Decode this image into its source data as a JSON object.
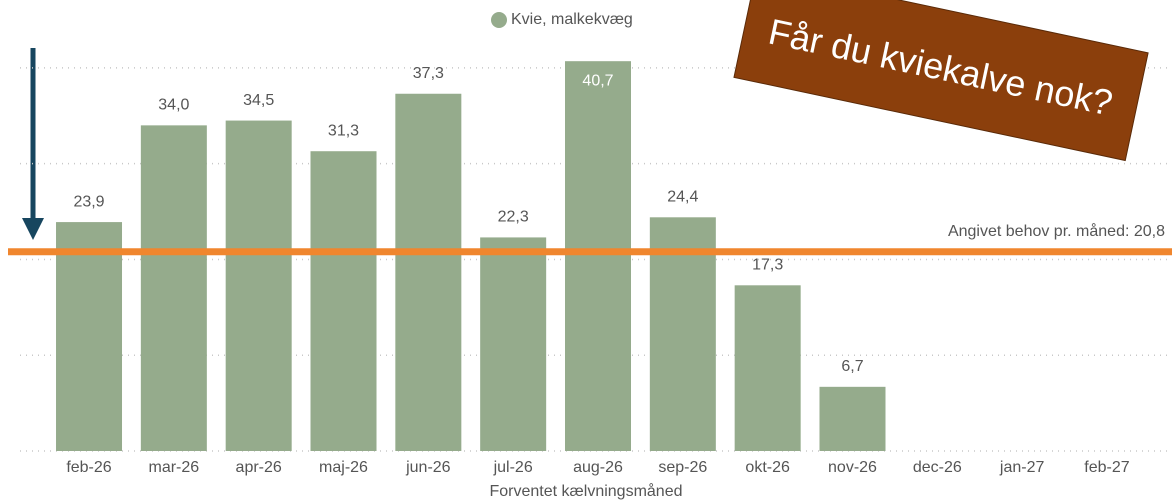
{
  "chart_data": {
    "type": "bar",
    "legend": "Kvie, malkekvæg",
    "x_label": "Forventet kælvningsmåned",
    "annotation": "Får du kviekalve nok?",
    "categories": [
      "feb-26",
      "mar-26",
      "apr-26",
      "maj-26",
      "jun-26",
      "jul-26",
      "aug-26",
      "sep-26",
      "okt-26",
      "nov-26",
      "dec-26",
      "jan-27",
      "feb-27"
    ],
    "values": [
      23.9,
      34.0,
      34.5,
      31.3,
      37.3,
      22.3,
      40.7,
      24.4,
      17.3,
      6.7,
      null,
      null,
      null
    ],
    "value_labels": [
      "23,9",
      "34,0",
      "34,5",
      "31,3",
      "37,3",
      "22,3",
      "40,7",
      "24,4",
      "17,3",
      "6,7",
      null,
      null,
      null
    ],
    "color": "#95ab8c",
    "reference_line": {
      "value": 20.8,
      "label": "Angivet behov pr. måned: 20,8",
      "color": "#f0862e"
    },
    "ylim": [
      0,
      45
    ],
    "yticks": [
      0,
      10,
      20,
      30,
      40
    ],
    "grid": true
  }
}
